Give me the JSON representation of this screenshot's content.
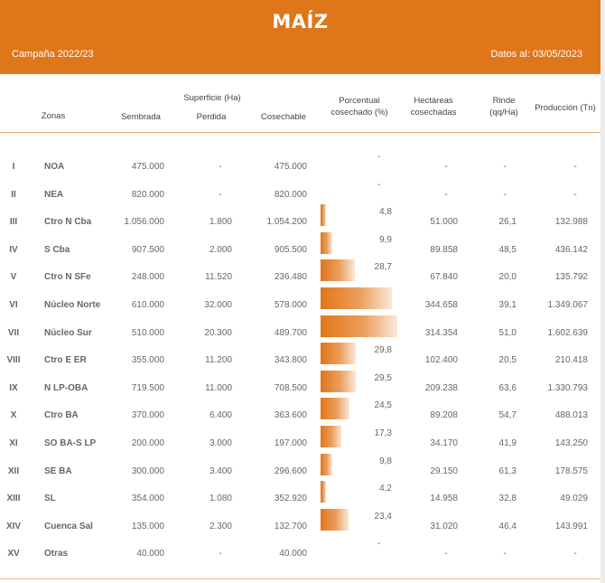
{
  "header": {
    "title": "MAÍZ",
    "campaign": "Campaña 2022/23",
    "date": "Datos al: 03/05/2023",
    "bg_color": "#e0761a"
  },
  "columns": {
    "zonas": "Zonas",
    "superficie": "Superficie (Ha)",
    "sembrada": "Sembrada",
    "perdida": "Perdida",
    "cosechable": "Cosechable",
    "porcentual_1": "Porcentual",
    "porcentual_2": "cosechado (%)",
    "hectareas_1": "Hectáreas",
    "hectareas_2": "cosechadas",
    "rinde_1": "Rinde",
    "rinde_2": "(qq/Ha)",
    "produccion": "Producción (Tn)"
  },
  "rows": [
    {
      "num": "I",
      "zona": "NOA",
      "sembrada": "475.000",
      "perdida": "-",
      "cosechable": "475.000",
      "pct": "-",
      "pct_value": 0,
      "hectareas": "-",
      "rinde": "-",
      "produccion": "-"
    },
    {
      "num": "II",
      "zona": "NEA",
      "sembrada": "820.000",
      "perdida": "-",
      "cosechable": "820.000",
      "pct": "-",
      "pct_value": 0,
      "hectareas": "-",
      "rinde": "-",
      "produccion": "-"
    },
    {
      "num": "III",
      "zona": "Ctro N Cba",
      "sembrada": "1.056.000",
      "perdida": "1.800",
      "cosechable": "1.054.200",
      "pct": "4,8",
      "pct_value": 4.8,
      "hectareas": "51.000",
      "rinde": "26,1",
      "produccion": "132.988"
    },
    {
      "num": "IV",
      "zona": "S Cba",
      "sembrada": "907.500",
      "perdida": "2.000",
      "cosechable": "905.500",
      "pct": "9,9",
      "pct_value": 9.9,
      "hectareas": "89.858",
      "rinde": "48,5",
      "produccion": "436.142"
    },
    {
      "num": "V",
      "zona": "Ctro N SFe",
      "sembrada": "248.000",
      "perdida": "11.520",
      "cosechable": "236.480",
      "pct": "28,7",
      "pct_value": 28.7,
      "hectareas": "67.840",
      "rinde": "20,0",
      "produccion": "135.792"
    },
    {
      "num": "VI",
      "zona": "Núcleo Norte",
      "sembrada": "610.000",
      "perdida": "32.000",
      "cosechable": "578.000",
      "pct": "59,6",
      "pct_value": 59.6,
      "hectareas": "344.658",
      "rinde": "39,1",
      "produccion": "1.349.067"
    },
    {
      "num": "VII",
      "zona": "Núcleo Sur",
      "sembrada": "510.000",
      "perdida": "20.300",
      "cosechable": "489.700",
      "pct": "64,2",
      "pct_value": 64.2,
      "hectareas": "314.354",
      "rinde": "51,0",
      "produccion": "1.602.639"
    },
    {
      "num": "VIII",
      "zona": "Ctro E ER",
      "sembrada": "355.000",
      "perdida": "11.200",
      "cosechable": "343.800",
      "pct": "29,8",
      "pct_value": 29.8,
      "hectareas": "102.400",
      "rinde": "20,5",
      "produccion": "210.418"
    },
    {
      "num": "IX",
      "zona": "N LP-OBA",
      "sembrada": "719.500",
      "perdida": "11.000",
      "cosechable": "708.500",
      "pct": "29,5",
      "pct_value": 29.5,
      "hectareas": "209.238",
      "rinde": "63,6",
      "produccion": "1.330.793"
    },
    {
      "num": "X",
      "zona": "Ctro BA",
      "sembrada": "370.000",
      "perdida": "6.400",
      "cosechable": "363.600",
      "pct": "24,5",
      "pct_value": 24.5,
      "hectareas": "89.208",
      "rinde": "54,7",
      "produccion": "488.013"
    },
    {
      "num": "XI",
      "zona": "SO BA-S LP",
      "sembrada": "200.000",
      "perdida": "3.000",
      "cosechable": "197.000",
      "pct": "17,3",
      "pct_value": 17.3,
      "hectareas": "34.170",
      "rinde": "41,9",
      "produccion": "143.250"
    },
    {
      "num": "XII",
      "zona": "SE BA",
      "sembrada": "300.000",
      "perdida": "3.400",
      "cosechable": "296.600",
      "pct": "9,8",
      "pct_value": 9.8,
      "hectareas": "29.150",
      "rinde": "61,3",
      "produccion": "178.575"
    },
    {
      "num": "XIII",
      "zona": "SL",
      "sembrada": "354.000",
      "perdida": "1.080",
      "cosechable": "352.920",
      "pct": "4,2",
      "pct_value": 4.2,
      "hectareas": "14.958",
      "rinde": "32,8",
      "produccion": "49.029"
    },
    {
      "num": "XIV",
      "zona": "Cuenca Sal",
      "sembrada": "135.000",
      "perdida": "2.300",
      "cosechable": "132.700",
      "pct": "23,4",
      "pct_value": 23.4,
      "hectareas": "31.020",
      "rinde": "46,4",
      "produccion": "143.991"
    },
    {
      "num": "XV",
      "zona": "Otras",
      "sembrada": "40.000",
      "perdida": "-",
      "cosechable": "40.000",
      "pct": "-",
      "pct_value": 0,
      "hectareas": "-",
      "rinde": "-",
      "produccion": "-"
    }
  ]
}
